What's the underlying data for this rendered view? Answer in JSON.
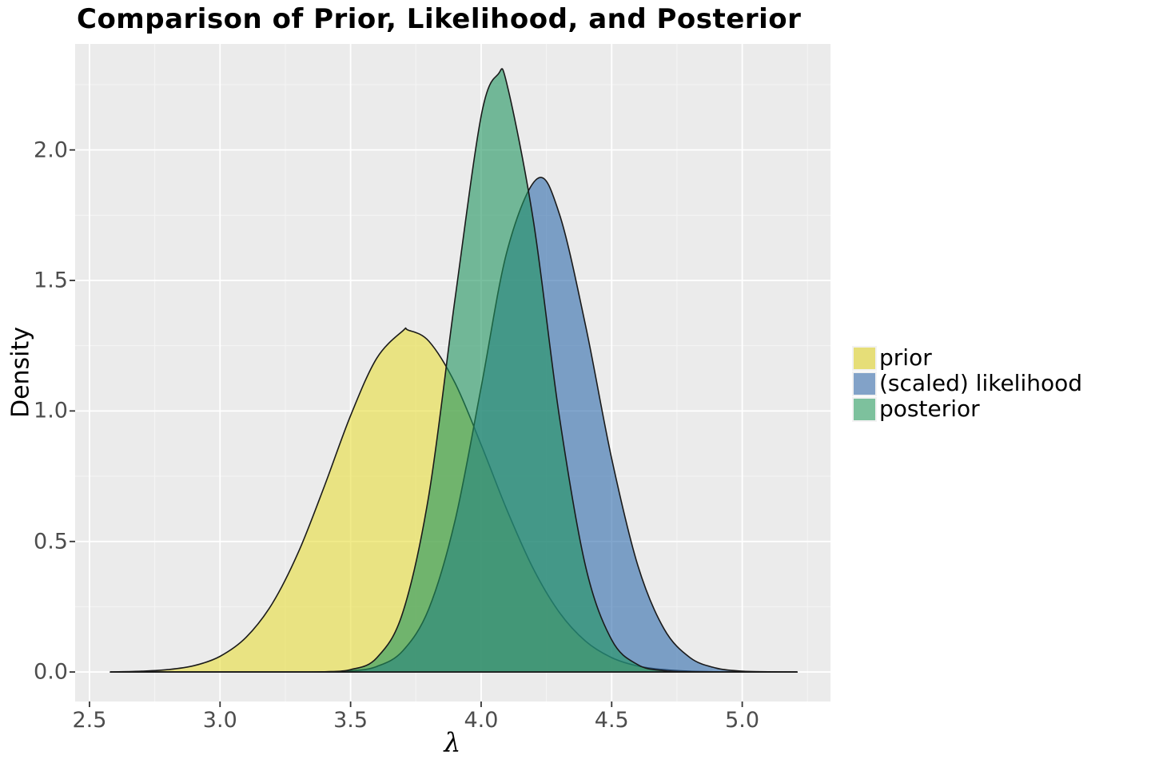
{
  "title": "Comparison of Prior, Likelihood, and Posterior",
  "chart_data": {
    "type": "area",
    "title": "Comparison of Prior, Likelihood, and Posterior",
    "xlabel": "λ",
    "ylabel": "Density",
    "x_ticks": [
      2.5,
      3.0,
      3.5,
      4.0,
      4.5,
      5.0
    ],
    "y_ticks": [
      0.0,
      0.5,
      1.0,
      1.5,
      2.0
    ],
    "x_tick_labels": [
      "2.5",
      "3.0",
      "3.5",
      "4.0",
      "4.5",
      "5.0"
    ],
    "y_tick_labels": [
      "0.0",
      "0.5",
      "1.0",
      "1.5",
      "2.0"
    ],
    "xlim": [
      2.445,
      5.338
    ],
    "ylim": [
      -0.113,
      2.406
    ],
    "grid": true,
    "legend_position": "right",
    "panel_bg": "#EBEBEB",
    "grid_major_color": "#FFFFFF",
    "grid_minor_color": "#F5F5F5",
    "tick_mark_color": "#333333",
    "tick_label_color": "#4D4D4D",
    "outline_color": "#1A1A1A",
    "fill_opacity": 0.6,
    "series": [
      {
        "name": "prior",
        "fill": "#E8DD3C",
        "legend_swatch": "#E6DE78",
        "peak": {
          "x": 3.72,
          "density": 1.31
        },
        "points": [
          [
            2.58,
            0
          ],
          [
            2.7,
            0.003
          ],
          [
            2.8,
            0.009
          ],
          [
            2.9,
            0.024
          ],
          [
            3.0,
            0.06
          ],
          [
            3.1,
            0.133
          ],
          [
            3.2,
            0.262
          ],
          [
            3.3,
            0.459
          ],
          [
            3.4,
            0.713
          ],
          [
            3.5,
            0.982
          ],
          [
            3.6,
            1.202
          ],
          [
            3.7,
            1.307
          ],
          [
            3.72,
            1.31
          ],
          [
            3.8,
            1.267
          ],
          [
            3.9,
            1.107
          ],
          [
            4.0,
            0.871
          ],
          [
            4.1,
            0.618
          ],
          [
            4.2,
            0.395
          ],
          [
            4.3,
            0.228
          ],
          [
            4.4,
            0.118
          ],
          [
            4.5,
            0.055
          ],
          [
            4.6,
            0.023
          ],
          [
            4.7,
            0.009
          ],
          [
            4.8,
            0.003
          ],
          [
            4.9,
            0.001
          ],
          [
            5.0,
            0
          ],
          [
            5.21,
            0
          ]
        ]
      },
      {
        "name": "(scaled) likelihood",
        "fill": "#2F6BAC",
        "legend_swatch": "#82A2C8",
        "peak": {
          "x": 4.21,
          "density": 1.89
        },
        "points": [
          [
            2.58,
            0
          ],
          [
            3.2,
            0
          ],
          [
            3.3,
            0
          ],
          [
            3.4,
            0.001
          ],
          [
            3.5,
            0.004
          ],
          [
            3.6,
            0.021
          ],
          [
            3.7,
            0.081
          ],
          [
            3.8,
            0.243
          ],
          [
            3.9,
            0.58
          ],
          [
            4.0,
            1.09
          ],
          [
            4.1,
            1.615
          ],
          [
            4.215,
            1.89
          ],
          [
            4.3,
            1.754
          ],
          [
            4.4,
            1.327
          ],
          [
            4.5,
            0.817
          ],
          [
            4.6,
            0.409
          ],
          [
            4.7,
            0.166
          ],
          [
            4.8,
            0.055
          ],
          [
            4.9,
            0.015
          ],
          [
            5.0,
            0.003
          ],
          [
            5.1,
            0.001
          ],
          [
            5.21,
            0
          ]
        ]
      },
      {
        "name": "posterior",
        "fill": "#1F945F",
        "legend_swatch": "#7DC19D",
        "peak": {
          "x": 4.07,
          "density": 2.29
        },
        "points": [
          [
            2.58,
            0
          ],
          [
            3.2,
            0
          ],
          [
            3.3,
            0
          ],
          [
            3.4,
            0.001
          ],
          [
            3.5,
            0.009
          ],
          [
            3.6,
            0.054
          ],
          [
            3.7,
            0.228
          ],
          [
            3.8,
            0.679
          ],
          [
            3.9,
            1.43
          ],
          [
            4.0,
            2.129
          ],
          [
            4.065,
            2.29
          ],
          [
            4.1,
            2.247
          ],
          [
            4.2,
            1.729
          ],
          [
            4.3,
            0.977
          ],
          [
            4.4,
            0.405
          ],
          [
            4.5,
            0.123
          ],
          [
            4.6,
            0.028
          ],
          [
            4.7,
            0.005
          ],
          [
            4.8,
            0.001
          ],
          [
            4.9,
            0
          ],
          [
            5.21,
            0
          ]
        ]
      }
    ]
  }
}
